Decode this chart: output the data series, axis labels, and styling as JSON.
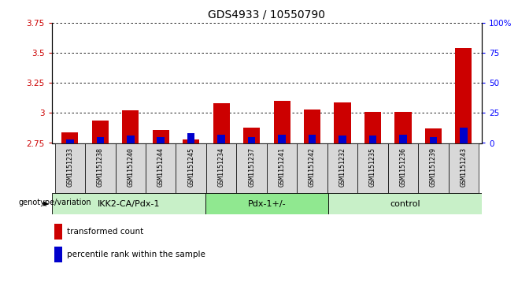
{
  "title": "GDS4933 / 10550790",
  "samples": [
    "GSM1151233",
    "GSM1151238",
    "GSM1151240",
    "GSM1151244",
    "GSM1151245",
    "GSM1151234",
    "GSM1151237",
    "GSM1151241",
    "GSM1151242",
    "GSM1151232",
    "GSM1151235",
    "GSM1151236",
    "GSM1151239",
    "GSM1151243"
  ],
  "red_values": [
    2.84,
    2.94,
    3.02,
    2.86,
    2.78,
    3.08,
    2.88,
    3.1,
    3.03,
    3.09,
    3.01,
    3.01,
    2.87,
    3.54
  ],
  "blue_values_pct": [
    3,
    5,
    6,
    5,
    8,
    7,
    5,
    7,
    7,
    6,
    6,
    7,
    5,
    13
  ],
  "ymin": 2.75,
  "ymax": 3.75,
  "yticks": [
    2.75,
    3.0,
    3.25,
    3.5,
    3.75
  ],
  "ytick_labels": [
    "2.75",
    "3",
    "3.25",
    "3.5",
    "3.75"
  ],
  "right_yticks_pct": [
    0,
    25,
    50,
    75,
    100
  ],
  "right_ytick_labels": [
    "0",
    "25",
    "50",
    "75",
    "100%"
  ],
  "groups": [
    {
      "label": "IKK2-CA/Pdx-1",
      "start": 0,
      "end": 5,
      "color": "#c8f0c8"
    },
    {
      "label": "Pdx-1+/-",
      "start": 5,
      "end": 9,
      "color": "#90e890"
    },
    {
      "label": "control",
      "start": 9,
      "end": 14,
      "color": "#c8f0c8"
    }
  ],
  "red_color": "#cc0000",
  "blue_color": "#0000cc",
  "label_red": "transformed count",
  "label_blue": "percentile rank within the sample",
  "xlabel_group": "genotype/variation",
  "title_fontsize": 10,
  "tick_fontsize": 7.5
}
